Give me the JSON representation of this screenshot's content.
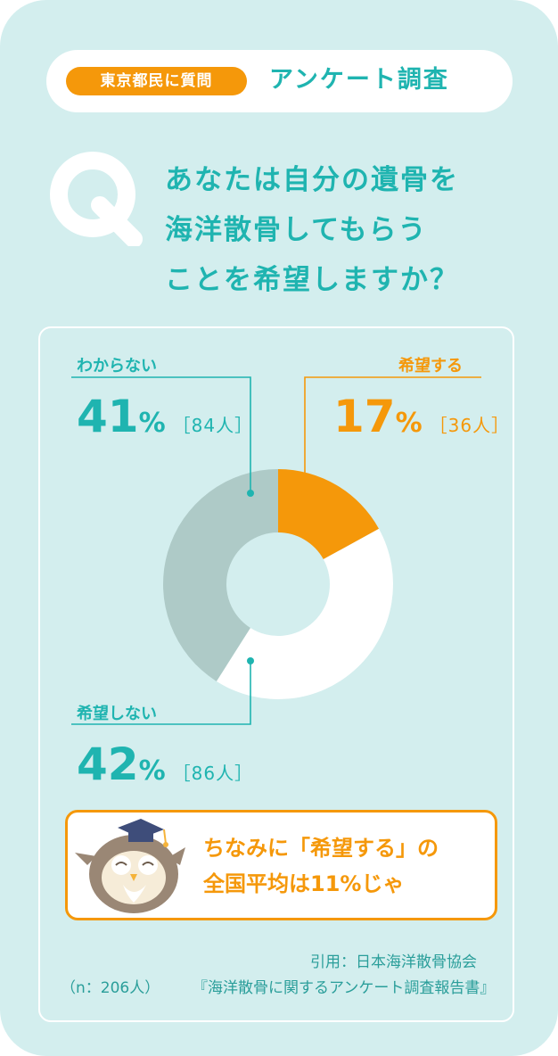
{
  "header": {
    "tag": "東京都民に質問",
    "title": "アンケート調査"
  },
  "question": {
    "mark": "Q",
    "lines": [
      "あなたは自分の遺骨を",
      "海洋散骨してもらう",
      "ことを希望しますか？"
    ]
  },
  "chart_data": {
    "type": "pie",
    "donut": true,
    "slices": [
      {
        "label": "希望する",
        "percent": 17,
        "pct_text": "17",
        "count": "［36人］",
        "color": "#f5980a"
      },
      {
        "label": "希望しない",
        "percent": 42,
        "pct_text": "42",
        "count": "［86人］",
        "color": "#ffffff"
      },
      {
        "label": "わからない",
        "percent": 41,
        "pct_text": "41",
        "count": "［84人］",
        "color": "#aecac7"
      }
    ],
    "percent_sign": "%"
  },
  "note": {
    "line1": "ちなみに「希望する」の",
    "line2": "全国平均は11%じゃ"
  },
  "footer": {
    "sample": "（n：206人）",
    "source_line1": "引用：日本海洋散骨協会",
    "source_line2": "『海洋散骨に関するアンケート調査報告書』"
  },
  "colors": {
    "accent_teal": "#1fb4b0",
    "accent_orange": "#f5980a",
    "background": "#d3eeee"
  }
}
